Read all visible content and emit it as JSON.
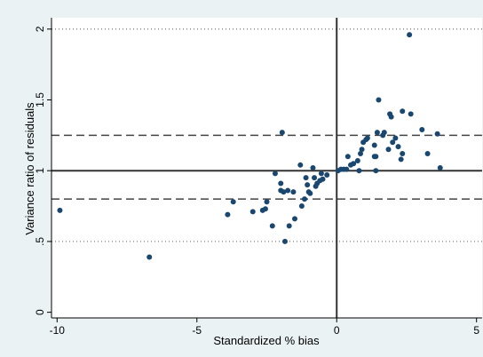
{
  "chart_data": {
    "type": "scatter",
    "title": "",
    "xlabel": "Standardized % bias",
    "ylabel": "Variance ratio of residuals",
    "xlim": [
      -10.2,
      5.2
    ],
    "ylim": [
      -0.04,
      2.08
    ],
    "xticks": [
      {
        "value": -10,
        "label": "-10"
      },
      {
        "value": -5,
        "label": "-5"
      },
      {
        "value": 0,
        "label": "0"
      },
      {
        "value": 5,
        "label": "5"
      }
    ],
    "yticks": [
      {
        "value": 0,
        "label": "0"
      },
      {
        "value": 0.5,
        "label": ".5"
      },
      {
        "value": 1,
        "label": "1"
      },
      {
        "value": 1.5,
        "label": "1.5"
      },
      {
        "value": 2,
        "label": "2"
      }
    ],
    "reference_lines": {
      "solid_horizontal": 1,
      "solid_vertical": 0,
      "dashed_horizontal": [
        0.8,
        1.25
      ],
      "dotted_horizontal": [
        0.5,
        2
      ]
    },
    "marker_color": "#1a476f",
    "points": [
      {
        "x": -9.9,
        "y": 0.72
      },
      {
        "x": -6.7,
        "y": 0.39
      },
      {
        "x": -3.9,
        "y": 0.69
      },
      {
        "x": -3.7,
        "y": 0.78
      },
      {
        "x": -3.0,
        "y": 0.71
      },
      {
        "x": -2.65,
        "y": 0.72
      },
      {
        "x": -2.55,
        "y": 0.73
      },
      {
        "x": -2.5,
        "y": 0.78
      },
      {
        "x": -2.3,
        "y": 0.61
      },
      {
        "x": -2.2,
        "y": 0.98
      },
      {
        "x": -2.0,
        "y": 0.91
      },
      {
        "x": -2.0,
        "y": 0.86
      },
      {
        "x": -1.95,
        "y": 1.27
      },
      {
        "x": -1.9,
        "y": 0.85
      },
      {
        "x": -1.85,
        "y": 0.5
      },
      {
        "x": -1.75,
        "y": 0.86
      },
      {
        "x": -1.7,
        "y": 0.61
      },
      {
        "x": -1.55,
        "y": 0.85
      },
      {
        "x": -1.5,
        "y": 0.66
      },
      {
        "x": -1.3,
        "y": 1.04
      },
      {
        "x": -1.25,
        "y": 0.75
      },
      {
        "x": -1.15,
        "y": 0.8
      },
      {
        "x": -1.1,
        "y": 0.95
      },
      {
        "x": -1.05,
        "y": 0.9
      },
      {
        "x": -1.0,
        "y": 0.85
      },
      {
        "x": -0.95,
        "y": 0.84
      },
      {
        "x": -0.85,
        "y": 1.02
      },
      {
        "x": -0.8,
        "y": 0.95
      },
      {
        "x": -0.75,
        "y": 0.89
      },
      {
        "x": -0.7,
        "y": 0.91
      },
      {
        "x": -0.6,
        "y": 0.93
      },
      {
        "x": -0.55,
        "y": 0.98
      },
      {
        "x": -0.5,
        "y": 0.94
      },
      {
        "x": -0.35,
        "y": 0.97
      },
      {
        "x": 0.05,
        "y": 1.0
      },
      {
        "x": 0.15,
        "y": 1.01
      },
      {
        "x": 0.25,
        "y": 1.01
      },
      {
        "x": 0.35,
        "y": 1.01
      },
      {
        "x": 0.4,
        "y": 1.1
      },
      {
        "x": 0.5,
        "y": 1.04
      },
      {
        "x": 0.6,
        "y": 1.05
      },
      {
        "x": 0.75,
        "y": 1.07
      },
      {
        "x": 0.8,
        "y": 1.0
      },
      {
        "x": 0.85,
        "y": 1.12
      },
      {
        "x": 0.9,
        "y": 1.15
      },
      {
        "x": 0.95,
        "y": 1.2
      },
      {
        "x": 1.05,
        "y": 1.22
      },
      {
        "x": 1.1,
        "y": 1.23
      },
      {
        "x": 1.35,
        "y": 1.18
      },
      {
        "x": 1.35,
        "y": 1.1
      },
      {
        "x": 1.4,
        "y": 1.1
      },
      {
        "x": 1.4,
        "y": 1.0
      },
      {
        "x": 1.45,
        "y": 1.27
      },
      {
        "x": 1.5,
        "y": 1.5
      },
      {
        "x": 1.65,
        "y": 1.25
      },
      {
        "x": 1.7,
        "y": 1.27
      },
      {
        "x": 1.85,
        "y": 1.15
      },
      {
        "x": 1.9,
        "y": 1.4
      },
      {
        "x": 1.95,
        "y": 1.38
      },
      {
        "x": 2.0,
        "y": 1.2
      },
      {
        "x": 2.1,
        "y": 1.23
      },
      {
        "x": 2.2,
        "y": 1.17
      },
      {
        "x": 2.3,
        "y": 1.08
      },
      {
        "x": 2.35,
        "y": 1.12
      },
      {
        "x": 2.35,
        "y": 1.42
      },
      {
        "x": 2.6,
        "y": 1.96
      },
      {
        "x": 2.65,
        "y": 1.4
      },
      {
        "x": 3.05,
        "y": 1.29
      },
      {
        "x": 3.25,
        "y": 1.12
      },
      {
        "x": 3.6,
        "y": 1.26
      },
      {
        "x": 3.7,
        "y": 1.02
      }
    ]
  }
}
